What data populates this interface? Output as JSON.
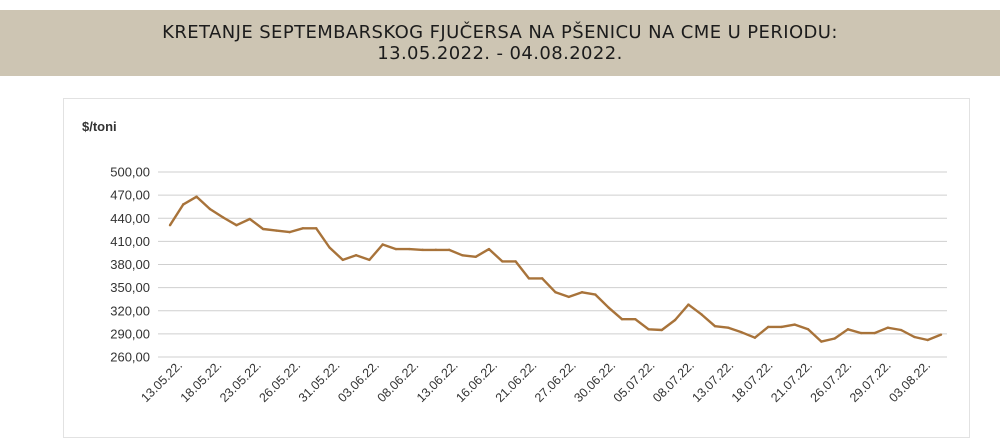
{
  "banner": {
    "line1": "KRETANJE SEPTEMBARSKOG FJUČERSA NA PŠENICU NA CME U PERIODU:",
    "line2": "13.05.2022. - 04.08.2022."
  },
  "chart_data": {
    "type": "line",
    "title": "",
    "ylabel": "$/toni",
    "xlabel": "",
    "ylim": [
      260,
      500
    ],
    "yticks": [
      "500,00",
      "470,00",
      "440,00",
      "410,00",
      "380,00",
      "350,00",
      "320,00",
      "290,00",
      "260,00"
    ],
    "ytick_values": [
      500,
      470,
      440,
      410,
      380,
      350,
      320,
      290,
      260
    ],
    "xtick_labels": [
      "13.05.22.",
      "18.05.22.",
      "23.05.22.",
      "26.05.22.",
      "31.05.22.",
      "03.06.22.",
      "08.06.22.",
      "13.06.22.",
      "16.06.22.",
      "21.06.22.",
      "27.06.22.",
      "30.06.22.",
      "05.07.22.",
      "08.07.22.",
      "13.07.22.",
      "18.07.22.",
      "21.07.22.",
      "26.07.22.",
      "29.07.22.",
      "03.08.22."
    ],
    "grid": true,
    "line_color": "#a8733a",
    "series": [
      {
        "values": [
          431,
          458,
          468,
          452,
          441,
          431,
          439,
          426,
          424,
          422,
          427,
          427,
          402,
          386,
          392,
          386,
          406,
          400,
          400,
          399,
          399,
          399,
          392,
          390,
          400,
          384,
          384,
          362,
          362,
          344,
          338,
          344,
          341,
          324,
          309,
          309,
          296,
          295,
          308,
          328,
          315,
          300,
          298,
          292,
          285,
          299,
          299,
          302,
          296,
          280,
          284,
          296,
          291,
          291,
          298,
          295,
          286,
          282,
          289
        ]
      }
    ]
  }
}
